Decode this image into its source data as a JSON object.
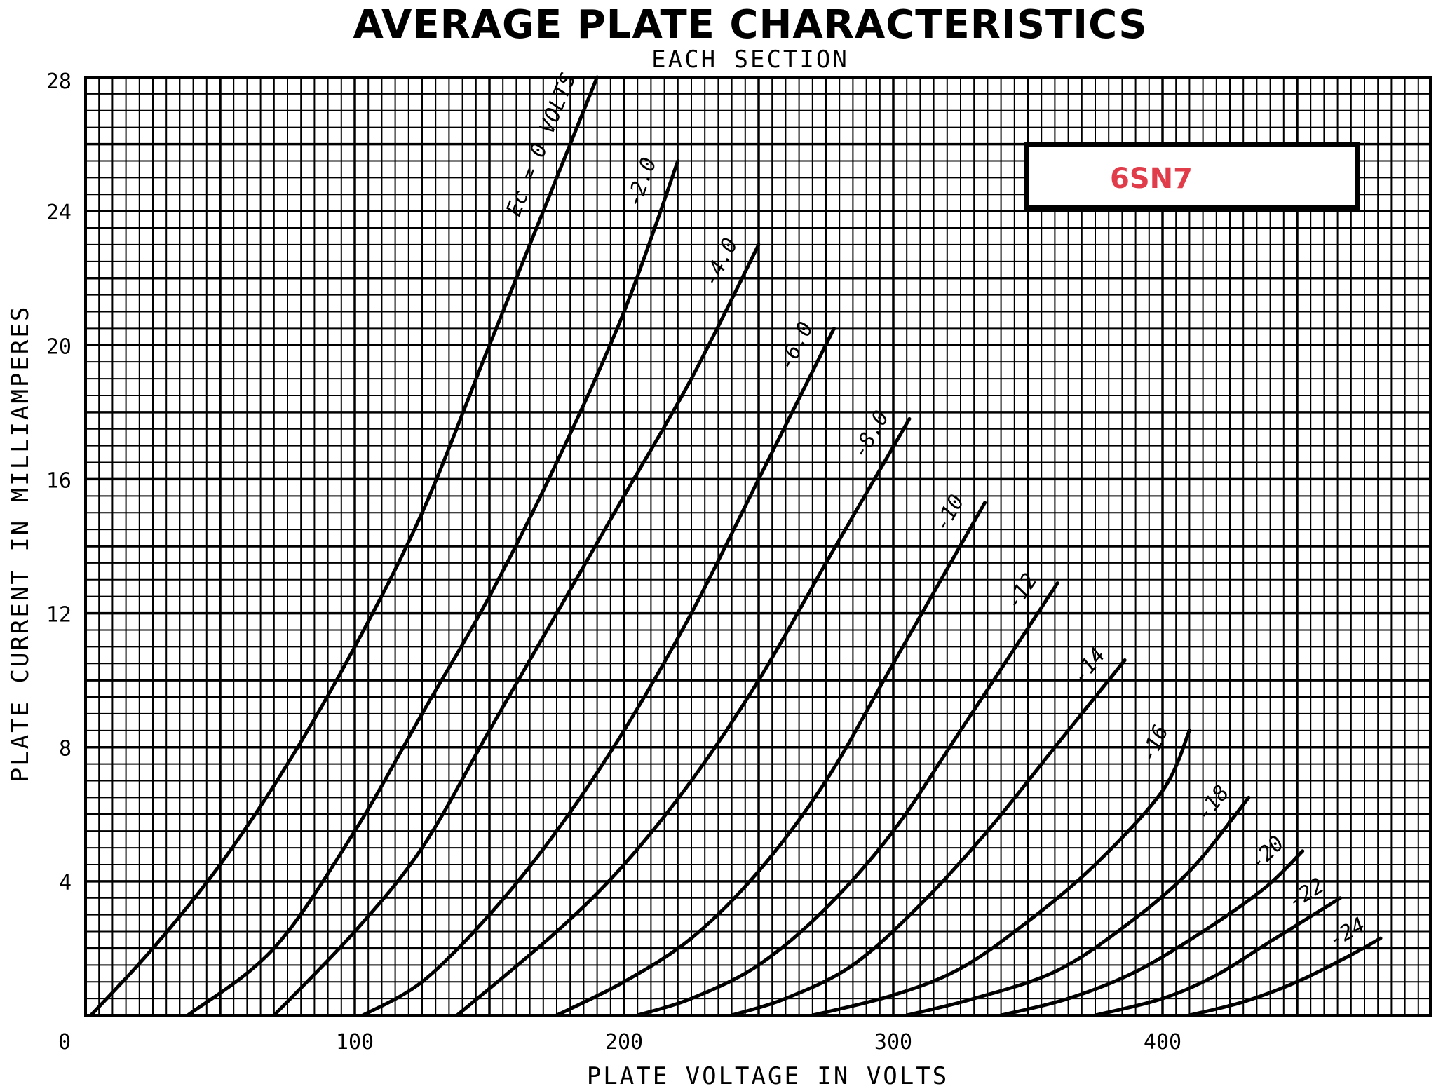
{
  "chart_data": {
    "type": "line",
    "title": "AVERAGE PLATE CHARACTERISTICS",
    "subtitle": "EACH SECTION",
    "xlabel": "PLATE VOLTAGE IN VOLTS",
    "ylabel": "PLATE CURRENT IN MILLIAMPERES",
    "xlim": [
      0,
      500
    ],
    "ylim": [
      0,
      28
    ],
    "x_ticks": [
      "0",
      "100",
      "200",
      "300",
      "400"
    ],
    "y_ticks": [
      "4",
      "8",
      "12",
      "16",
      "20",
      "24",
      "28"
    ],
    "grid": true,
    "legend_text": "6SN7",
    "legend_placement": "top-right",
    "series": [
      {
        "label": "Ec = 0 VOLTS",
        "points": [
          [
            2,
            0
          ],
          [
            25,
            2
          ],
          [
            50,
            4.5
          ],
          [
            75,
            7.5
          ],
          [
            100,
            11
          ],
          [
            125,
            15
          ],
          [
            150,
            20
          ],
          [
            175,
            25
          ],
          [
            190,
            28
          ]
        ]
      },
      {
        "label": "-2.0",
        "points": [
          [
            38,
            0
          ],
          [
            70,
            2
          ],
          [
            100,
            5.5
          ],
          [
            125,
            9
          ],
          [
            150,
            12.5
          ],
          [
            175,
            16.5
          ],
          [
            200,
            21
          ],
          [
            220,
            25.5
          ]
        ]
      },
      {
        "label": "-4.0",
        "points": [
          [
            70,
            0
          ],
          [
            100,
            2.5
          ],
          [
            125,
            5
          ],
          [
            150,
            8.5
          ],
          [
            175,
            12
          ],
          [
            200,
            15.5
          ],
          [
            225,
            19
          ],
          [
            250,
            23
          ]
        ]
      },
      {
        "label": "-6.0",
        "points": [
          [
            103,
            0
          ],
          [
            125,
            1
          ],
          [
            150,
            3
          ],
          [
            175,
            5.5
          ],
          [
            200,
            8.5
          ],
          [
            225,
            12
          ],
          [
            250,
            16
          ],
          [
            278,
            20.5
          ]
        ]
      },
      {
        "label": "-8.0",
        "points": [
          [
            138,
            0
          ],
          [
            175,
            2.5
          ],
          [
            200,
            4.5
          ],
          [
            225,
            7
          ],
          [
            250,
            10
          ],
          [
            275,
            13.5
          ],
          [
            306,
            17.8
          ]
        ]
      },
      {
        "label": "-10",
        "points": [
          [
            175,
            0
          ],
          [
            200,
            1
          ],
          [
            225,
            2.3
          ],
          [
            250,
            4.3
          ],
          [
            275,
            7
          ],
          [
            300,
            10.5
          ],
          [
            334,
            15.3
          ]
        ]
      },
      {
        "label": "-12",
        "points": [
          [
            205,
            0
          ],
          [
            225,
            0.5
          ],
          [
            250,
            1.5
          ],
          [
            275,
            3.2
          ],
          [
            300,
            5.5
          ],
          [
            325,
            8.5
          ],
          [
            361,
            12.9
          ]
        ]
      },
      {
        "label": "-14",
        "points": [
          [
            240,
            0
          ],
          [
            260,
            0.5
          ],
          [
            285,
            1.5
          ],
          [
            310,
            3.3
          ],
          [
            335,
            5.5
          ],
          [
            360,
            8
          ],
          [
            386,
            10.6
          ]
        ]
      },
      {
        "label": "-16",
        "points": [
          [
            270,
            0
          ],
          [
            300,
            0.6
          ],
          [
            325,
            1.4
          ],
          [
            350,
            2.8
          ],
          [
            375,
            4.5
          ],
          [
            400,
            6.7
          ],
          [
            410,
            8.5
          ]
        ]
      },
      {
        "label": "-18",
        "points": [
          [
            305,
            0
          ],
          [
            330,
            0.5
          ],
          [
            360,
            1.3
          ],
          [
            385,
            2.6
          ],
          [
            410,
            4.3
          ],
          [
            432,
            6.5
          ]
        ]
      },
      {
        "label": "-20",
        "points": [
          [
            340,
            0
          ],
          [
            365,
            0.5
          ],
          [
            390,
            1.3
          ],
          [
            415,
            2.5
          ],
          [
            438,
            3.8
          ],
          [
            452,
            4.9
          ]
        ]
      },
      {
        "label": "-22",
        "points": [
          [
            375,
            0
          ],
          [
            400,
            0.5
          ],
          [
            420,
            1.2
          ],
          [
            440,
            2.2
          ],
          [
            466,
            3.5
          ]
        ]
      },
      {
        "label": "-24",
        "points": [
          [
            410,
            0
          ],
          [
            430,
            0.4
          ],
          [
            450,
            1
          ],
          [
            470,
            1.8
          ],
          [
            481,
            2.3
          ]
        ]
      }
    ]
  }
}
